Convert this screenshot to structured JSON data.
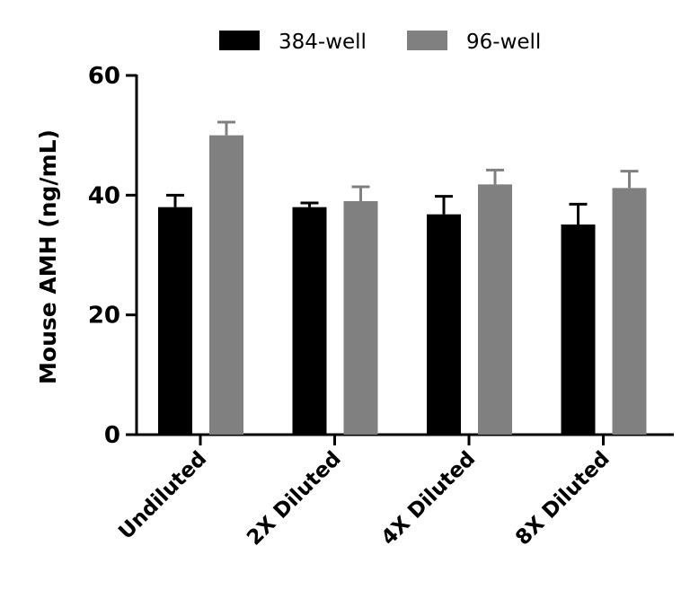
{
  "chart_data": {
    "type": "bar",
    "title": "",
    "xlabel": "",
    "ylabel": "Mouse AMH (ng/mL)",
    "ylim": [
      0,
      60
    ],
    "yticks": [
      "0",
      "20",
      "40",
      "60"
    ],
    "categories": [
      "Undiluted",
      "2X Diluted",
      "4X Diluted",
      "8X Diluted"
    ],
    "legend_position": "top-center",
    "series": [
      {
        "name": "384-well",
        "color": "#000000",
        "values": [
          38.0,
          38.0,
          36.8,
          35.1
        ],
        "errors": [
          2.0,
          0.7,
          3.0,
          3.4
        ]
      },
      {
        "name": "96-well",
        "color": "#808080",
        "values": [
          50.0,
          39.0,
          41.8,
          41.2
        ],
        "errors": [
          2.2,
          2.4,
          2.4,
          2.8
        ]
      }
    ]
  }
}
